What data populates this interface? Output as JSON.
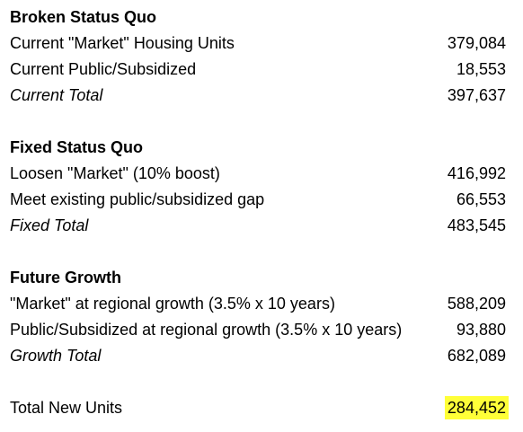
{
  "sections": [
    {
      "heading": "Broken Status Quo",
      "rows": [
        {
          "label": "Current \"Market\" Housing Units",
          "value": "379,084"
        },
        {
          "label": "Current Public/Subsidized",
          "value": "18,553"
        }
      ],
      "total": {
        "label": "Current Total",
        "value": "397,637"
      }
    },
    {
      "heading": "Fixed Status Quo",
      "rows": [
        {
          "label": "Loosen \"Market\" (10% boost)",
          "value": "416,992"
        },
        {
          "label": "Meet existing public/subsidized gap",
          "value": "66,553"
        }
      ],
      "total": {
        "label": "Fixed Total",
        "value": "483,545"
      }
    },
    {
      "heading": "Future Growth",
      "rows": [
        {
          "label": "\"Market\" at regional growth (3.5% x 10 years)",
          "value": "588,209"
        },
        {
          "label": "Public/Subsidized at regional growth (3.5% x 10 years)",
          "value": "93,880"
        }
      ],
      "total": {
        "label": "Growth Total",
        "value": "682,089"
      }
    }
  ],
  "grand_total": {
    "label": "Total New Units",
    "value": "284,452",
    "highlight_color": "#ffff38"
  }
}
